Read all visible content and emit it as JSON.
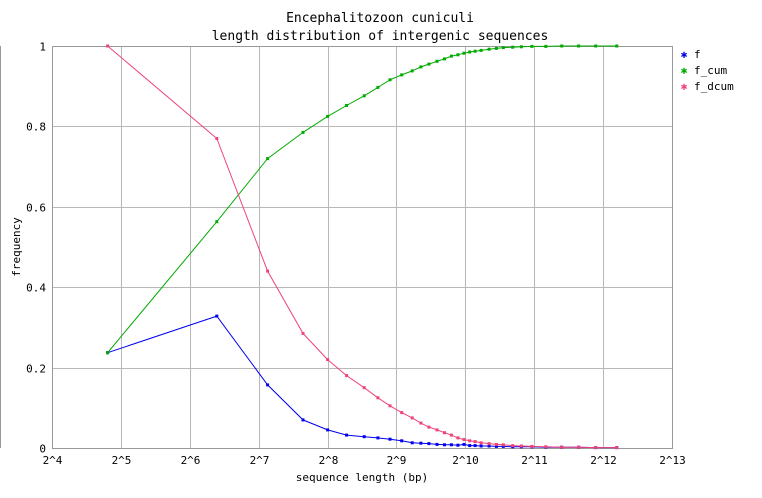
{
  "chart_data": {
    "type": "line",
    "title": [
      "Encephalitozoon cuniculi",
      "length distribution of intergenic sequences"
    ],
    "xlabel": "sequence length (bp)",
    "ylabel": "frequency",
    "x_scale": "log2",
    "xlim_exponent": [
      4,
      13
    ],
    "ylim": [
      0,
      1
    ],
    "x_tick_exponents": [
      4,
      5,
      6,
      7,
      8,
      9,
      10,
      11,
      12,
      13
    ],
    "x_tick_labels": [
      "2^4",
      "2^5",
      "2^6",
      "2^7",
      "2^8",
      "2^9",
      "2^10",
      "2^11",
      "2^12",
      "2^13"
    ],
    "y_ticks": [
      0,
      0.2,
      0.4,
      0.6,
      0.8,
      1
    ],
    "y_tick_labels": [
      "0",
      "0.2",
      "0.4",
      "0.6",
      "0.8",
      "1"
    ],
    "grid": true,
    "legend_position": "top-right-outside",
    "x": [
      28,
      84,
      140,
      200,
      256,
      310,
      370,
      425,
      480,
      540,
      600,
      655,
      710,
      770,
      830,
      890,
      950,
      1010,
      1070,
      1130,
      1200,
      1300,
      1400,
      1500,
      1650,
      1800,
      2000,
      2300,
      2700,
      3200,
      3800,
      4700
    ],
    "series": [
      {
        "name": "f",
        "color": "#0000ee",
        "values": [
          0.237,
          0.328,
          0.157,
          0.07,
          0.045,
          0.032,
          0.028,
          0.025,
          0.022,
          0.018,
          0.013,
          0.012,
          0.011,
          0.009,
          0.008,
          0.008,
          0.007,
          0.009,
          0.006,
          0.006,
          0.005,
          0.005,
          0.004,
          0.004,
          0.003,
          0.003,
          0.003,
          0.002,
          0.002,
          0.002,
          0.001,
          0.001
        ]
      },
      {
        "name": "f_cum",
        "color": "#00aa00",
        "values": [
          0.237,
          0.563,
          0.72,
          0.785,
          0.825,
          0.852,
          0.876,
          0.897,
          0.916,
          0.928,
          0.938,
          0.948,
          0.955,
          0.962,
          0.968,
          0.975,
          0.978,
          0.982,
          0.985,
          0.987,
          0.989,
          0.992,
          0.994,
          0.996,
          0.997,
          0.998,
          0.999,
          0.999,
          1.0,
          1.0,
          1.0,
          1.0
        ]
      },
      {
        "name": "f_dcum",
        "color": "#ee4477",
        "values": [
          1.0,
          0.77,
          0.44,
          0.285,
          0.22,
          0.18,
          0.15,
          0.125,
          0.105,
          0.088,
          0.075,
          0.062,
          0.052,
          0.045,
          0.038,
          0.032,
          0.025,
          0.021,
          0.018,
          0.016,
          0.013,
          0.011,
          0.009,
          0.008,
          0.006,
          0.005,
          0.004,
          0.003,
          0.002,
          0.002,
          0.001,
          0.001
        ]
      }
    ]
  }
}
